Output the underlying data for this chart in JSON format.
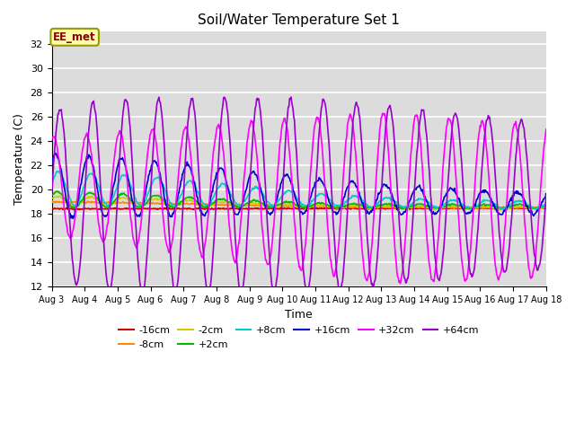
{
  "title": "Soil/Water Temperature Set 1",
  "xlabel": "Time",
  "ylabel": "Temperature (C)",
  "ylim": [
    12,
    33
  ],
  "yticks": [
    12,
    14,
    16,
    18,
    20,
    22,
    24,
    26,
    28,
    30,
    32
  ],
  "bg_color": "#DCDCDC",
  "annotation_text": "EE_met",
  "annotation_color": "#8B0000",
  "annotation_bg": "#FFFFAA",
  "annotation_border": "#999900",
  "series": [
    {
      "label": "-16cm",
      "color": "#CC0000"
    },
    {
      "label": "-8cm",
      "color": "#FF8800"
    },
    {
      "label": "-2cm",
      "color": "#CCCC00"
    },
    {
      "label": "+2cm",
      "color": "#00BB00"
    },
    {
      "label": "+8cm",
      "color": "#00CCCC"
    },
    {
      "label": "+16cm",
      "color": "#0000CC"
    },
    {
      "label": "+32cm",
      "color": "#FF00FF"
    },
    {
      "label": "+64cm",
      "color": "#9900CC"
    }
  ]
}
